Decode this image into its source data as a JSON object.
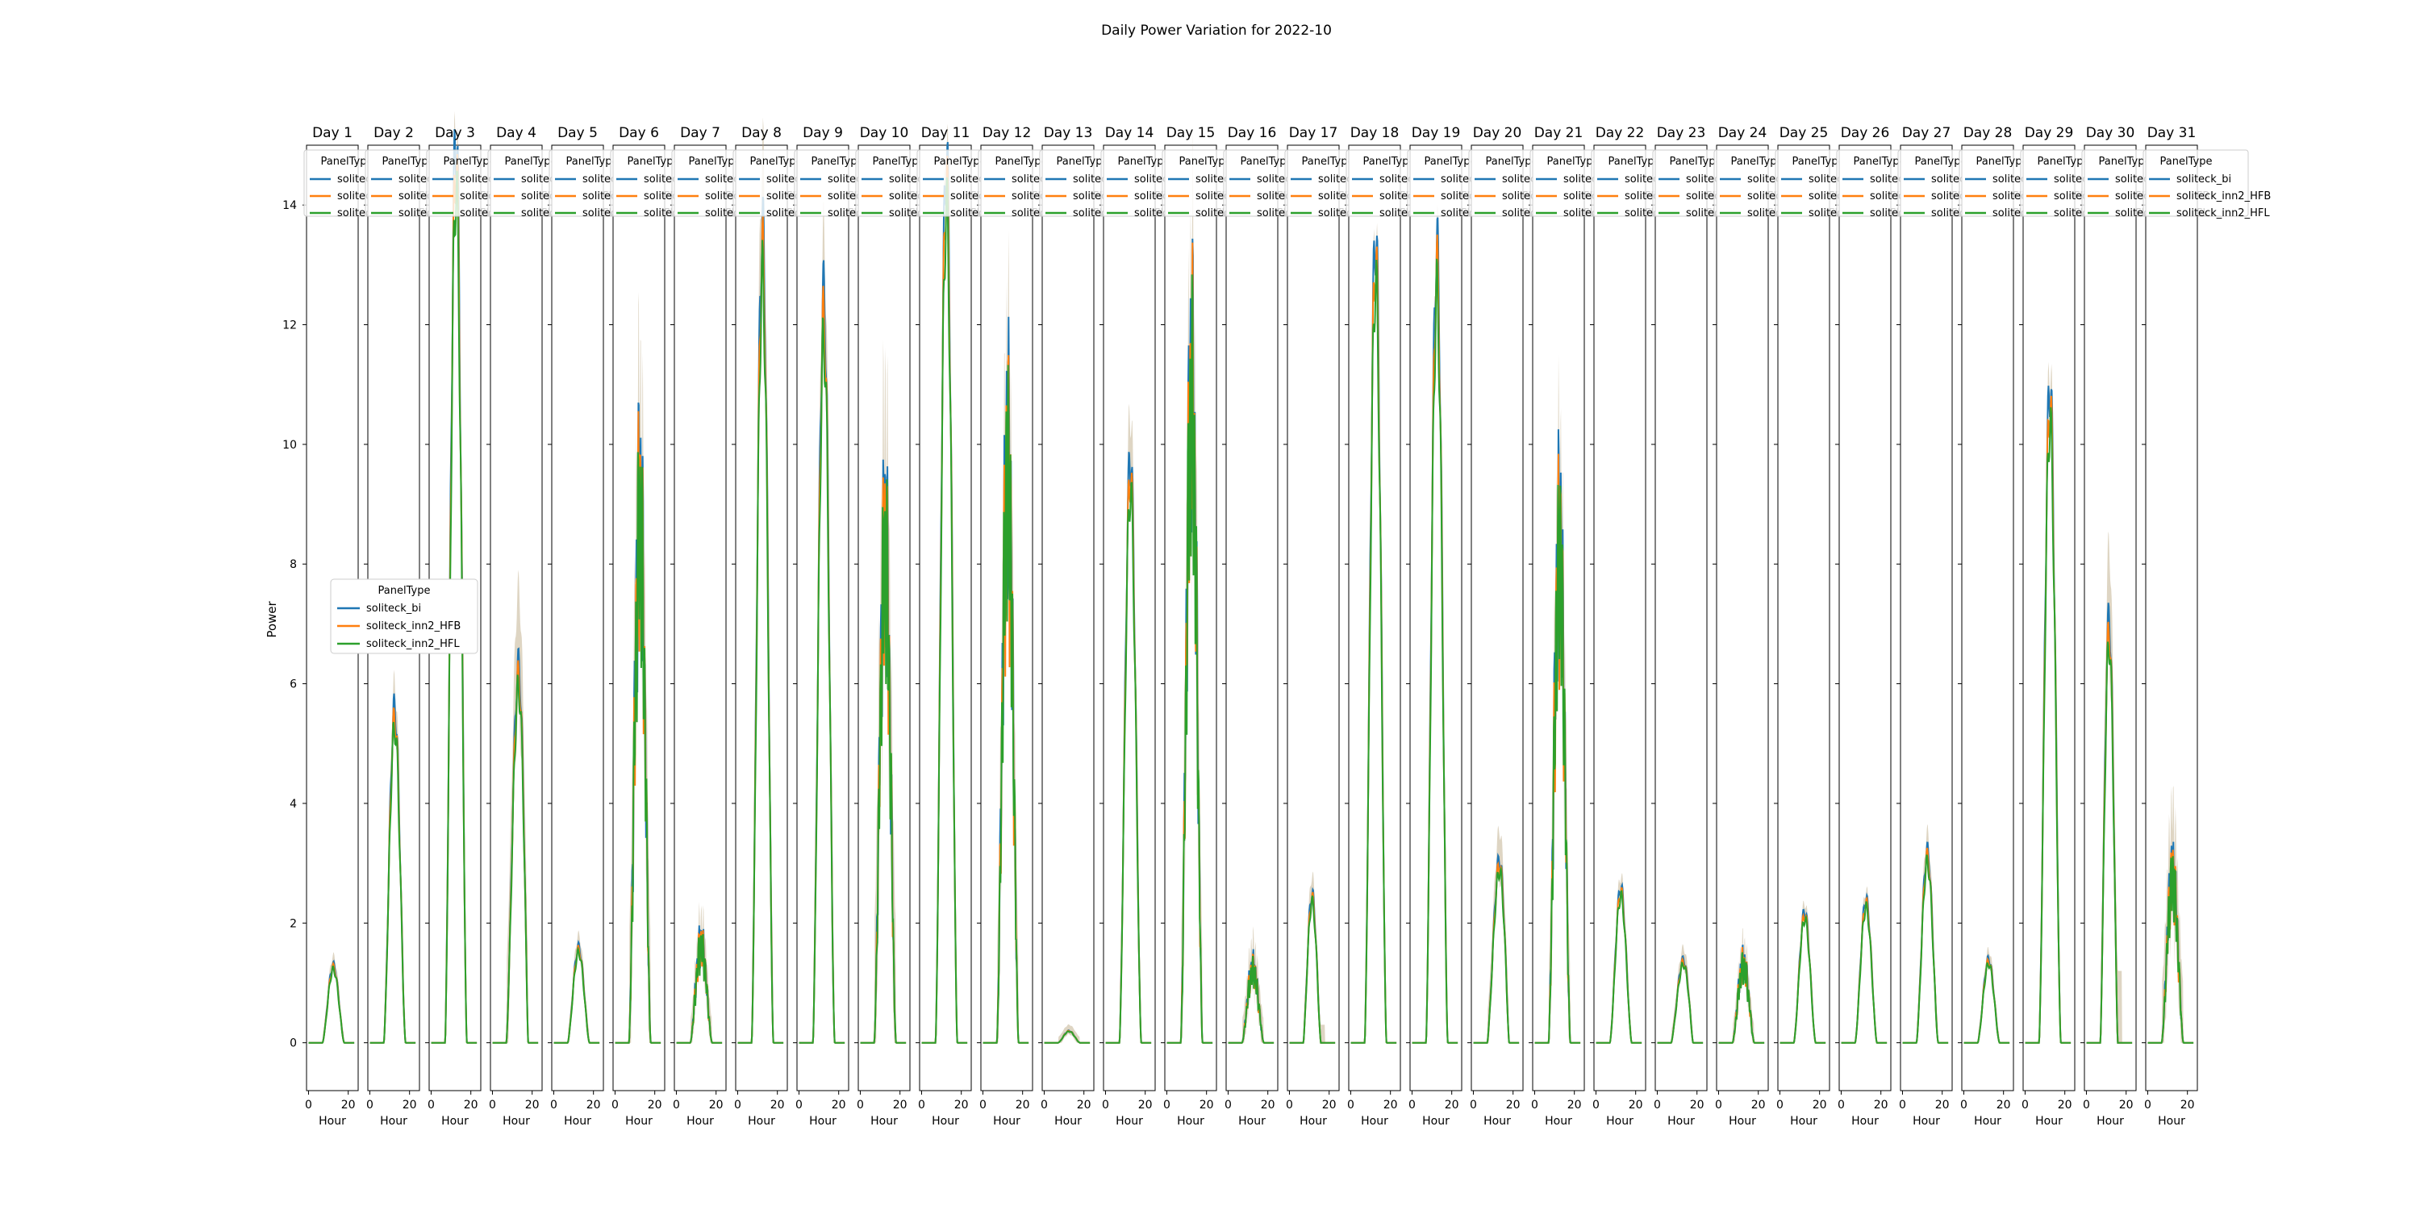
{
  "chart_data": {
    "type": "line",
    "title": "Daily Power Variation for 2022-10",
    "ylabel": "Power",
    "xlabel": "Hour",
    "ylim": [
      -0.8,
      15
    ],
    "xlim": [
      -1,
      25
    ],
    "y_ticks": [
      0,
      2,
      4,
      6,
      8,
      10,
      12,
      14
    ],
    "x_ticks": [
      0,
      20
    ],
    "grid": false,
    "legend_title": "PanelType",
    "legend_entries": [
      "soliteck_bi",
      "soliteck_inn2_HFB",
      "soliteck_inn2_HFL"
    ],
    "legend_placement": "top of each panel; large legend at left-middle of Day 1",
    "series_colors": [
      "#1f77b4",
      "#ff7f0e",
      "#2ca02c"
    ],
    "confidence_band": "light brown shaded band around each line",
    "panels": [
      {
        "title": "Day 1",
        "peak": 1.3,
        "start": 7,
        "end": 18,
        "shape": "bell",
        "band": 0.15
      },
      {
        "title": "Day 2",
        "peak": 5.6,
        "start": 7,
        "end": 18,
        "shape": "bell",
        "band": 0.4
      },
      {
        "title": "Day 3",
        "peak": 15.2,
        "start": 7,
        "end": 18,
        "shape": "bell",
        "band": 0.3
      },
      {
        "title": "Day 4",
        "peak": 6.8,
        "start": 7,
        "end": 18,
        "shape": "rising",
        "band": 1.3
      },
      {
        "title": "Day 5",
        "peak": 1.6,
        "start": 7,
        "end": 18,
        "shape": "bell",
        "band": 0.2
      },
      {
        "title": "Day 6",
        "peak": 10.8,
        "start": 7,
        "end": 18,
        "shape": "spiky",
        "band": 1.8
      },
      {
        "title": "Day 7",
        "peak": 2.0,
        "start": 7,
        "end": 18,
        "shape": "spiky",
        "band": 0.4
      },
      {
        "title": "Day 8",
        "peak": 13.6,
        "start": 7,
        "end": 18,
        "shape": "bell",
        "band": 1.3
      },
      {
        "title": "Day 9",
        "peak": 12.5,
        "start": 7,
        "end": 18,
        "shape": "bell",
        "band": 1.0
      },
      {
        "title": "Day 10",
        "peak": 10.1,
        "start": 7,
        "end": 18,
        "shape": "spiky",
        "band": 2.0
      },
      {
        "title": "Day 11",
        "peak": 14.8,
        "start": 7,
        "end": 18,
        "shape": "bell",
        "band": 0.3
      },
      {
        "title": "Day 12",
        "peak": 11.9,
        "start": 7,
        "end": 18,
        "shape": "spiky",
        "band": 1.5
      },
      {
        "title": "Day 13",
        "peak": 0.2,
        "start": 7,
        "end": 18,
        "shape": "bell",
        "band": 0.1
      },
      {
        "title": "Day 14",
        "peak": 9.8,
        "start": 7,
        "end": 18,
        "shape": "bell",
        "band": 0.8
      },
      {
        "title": "Day 15",
        "peak": 13.3,
        "start": 7,
        "end": 18,
        "shape": "spiky",
        "band": 1.6
      },
      {
        "title": "Day 16",
        "peak": 1.5,
        "start": 7,
        "end": 18,
        "shape": "spiky",
        "band": 0.4
      },
      {
        "title": "Day 17",
        "peak": 2.5,
        "start": 7,
        "end": 18,
        "shape": "early",
        "band": 0.3
      },
      {
        "title": "Day 18",
        "peak": 13.5,
        "start": 7,
        "end": 18,
        "shape": "bell",
        "band": 0.2
      },
      {
        "title": "Day 19",
        "peak": 13.3,
        "start": 7,
        "end": 18,
        "shape": "bell",
        "band": 0.2
      },
      {
        "title": "Day 20",
        "peak": 3.3,
        "start": 7,
        "end": 18,
        "shape": "rising",
        "band": 0.5
      },
      {
        "title": "Day 21",
        "peak": 10.1,
        "start": 7,
        "end": 18,
        "shape": "spiky",
        "band": 1.2
      },
      {
        "title": "Day 22",
        "peak": 2.6,
        "start": 7,
        "end": 18,
        "shape": "bell",
        "band": 0.2
      },
      {
        "title": "Day 23",
        "peak": 1.5,
        "start": 7,
        "end": 18,
        "shape": "rising",
        "band": 0.2
      },
      {
        "title": "Day 24",
        "peak": 1.6,
        "start": 7,
        "end": 18,
        "shape": "spiky",
        "band": 0.3
      },
      {
        "title": "Day 25",
        "peak": 2.2,
        "start": 7,
        "end": 18,
        "shape": "bell",
        "band": 0.15
      },
      {
        "title": "Day 26",
        "peak": 2.4,
        "start": 7,
        "end": 18,
        "shape": "bell",
        "band": 0.15
      },
      {
        "title": "Day 27",
        "peak": 3.2,
        "start": 7,
        "end": 18,
        "shape": "bell",
        "band": 0.3
      },
      {
        "title": "Day 28",
        "peak": 1.4,
        "start": 7,
        "end": 18,
        "shape": "bell",
        "band": 0.15
      },
      {
        "title": "Day 29",
        "peak": 11.0,
        "start": 7,
        "end": 18,
        "shape": "bell",
        "band": 0.4
      },
      {
        "title": "Day 30",
        "peak": 7.1,
        "start": 7,
        "end": 18,
        "shape": "early",
        "band": 1.2
      },
      {
        "title": "Day 31",
        "peak": 3.4,
        "start": 7,
        "end": 18,
        "shape": "spiky",
        "band": 1.0
      }
    ]
  }
}
